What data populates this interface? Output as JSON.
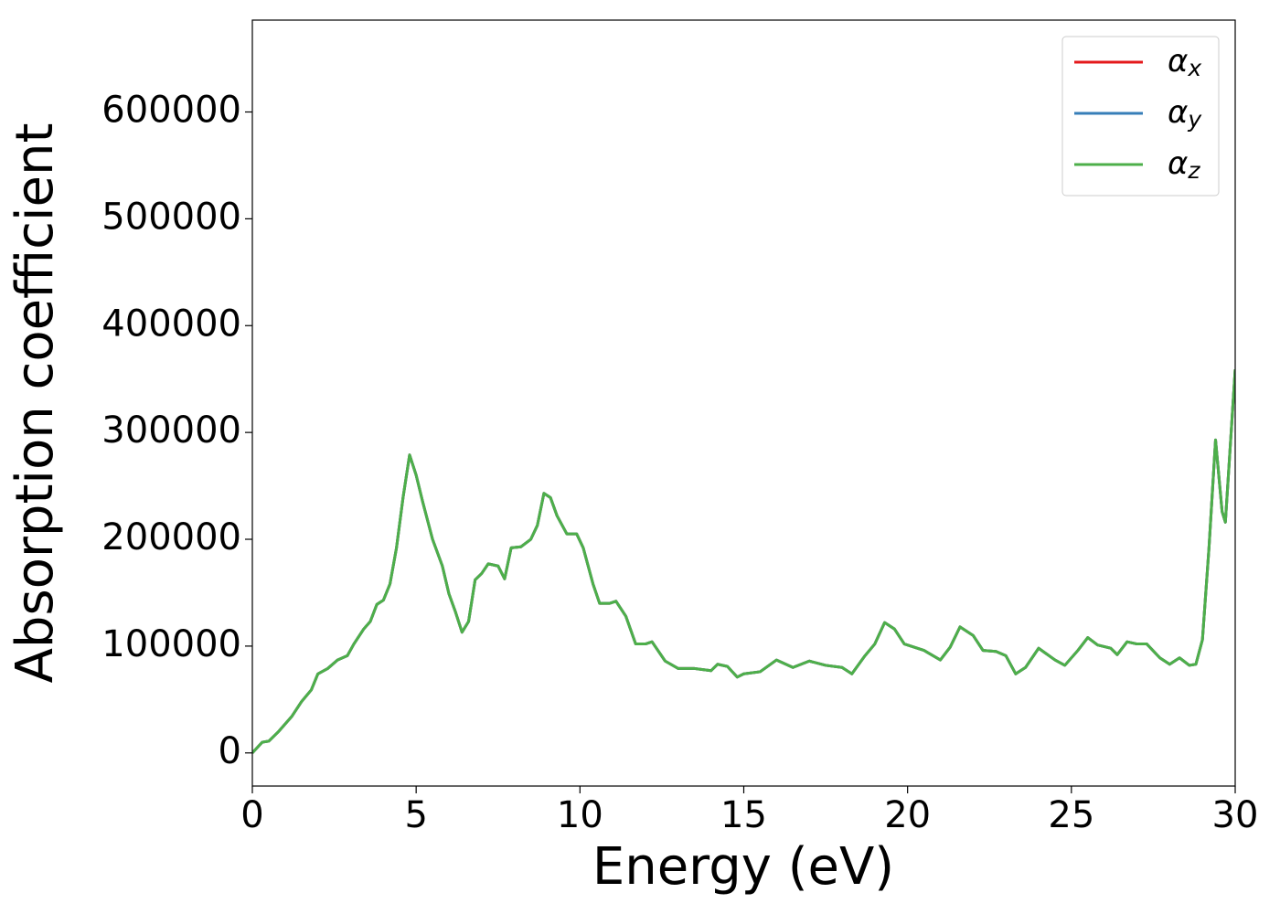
{
  "chart_data": {
    "type": "line",
    "xlabel": "Energy (eV)",
    "ylabel": "Absorption coefficient",
    "xlim": [
      0,
      30
    ],
    "xticks": [
      0,
      5,
      10,
      15,
      20,
      25,
      30
    ],
    "ylim": [
      -31000,
      686000
    ],
    "yticks": [
      0,
      100000,
      200000,
      300000,
      400000,
      500000,
      600000
    ],
    "grid": false,
    "legend": "upper right",
    "x": [
      0,
      0.3,
      0.5,
      0.8,
      1.2,
      1.5,
      1.8,
      2.0,
      2.3,
      2.6,
      2.9,
      3.1,
      3.4,
      3.6,
      3.8,
      4.0,
      4.2,
      4.4,
      4.6,
      4.8,
      5.0,
      5.2,
      5.5,
      5.8,
      6.0,
      6.2,
      6.4,
      6.6,
      6.8,
      7.0,
      7.2,
      7.5,
      7.7,
      7.9,
      8.2,
      8.5,
      8.7,
      8.9,
      9.1,
      9.3,
      9.6,
      9.9,
      10.1,
      10.4,
      10.6,
      10.9,
      11.1,
      11.4,
      11.7,
      12.0,
      12.2,
      12.6,
      13.0,
      13.5,
      14.0,
      14.2,
      14.5,
      14.8,
      15.0,
      15.5,
      16.0,
      16.5,
      17.0,
      17.5,
      18.0,
      18.3,
      18.7,
      19.0,
      19.3,
      19.6,
      19.9,
      20.5,
      21.0,
      21.3,
      21.6,
      22.0,
      22.3,
      22.7,
      23.0,
      23.3,
      23.6,
      24.0,
      24.5,
      24.8,
      25.2,
      25.5,
      25.8,
      26.2,
      26.4,
      26.7,
      27.0,
      27.3,
      27.7,
      28.0,
      28.3,
      28.6,
      28.8,
      29.0,
      29.2,
      29.4,
      29.6,
      29.7,
      30.0
    ],
    "series": [
      {
        "name": "αx",
        "color": "#e41a1c",
        "values": [
          0,
          10000,
          11000,
          20000,
          34000,
          48000,
          59000,
          74000,
          79000,
          87000,
          91000,
          102000,
          116000,
          123000,
          139000,
          143000,
          158000,
          192000,
          239000,
          279000,
          260000,
          235000,
          200000,
          175000,
          149000,
          132000,
          113000,
          123000,
          162000,
          168000,
          177000,
          175000,
          163000,
          192000,
          193000,
          200000,
          213000,
          243000,
          239000,
          222000,
          205000,
          205000,
          192000,
          158000,
          140000,
          140000,
          142000,
          128000,
          102000,
          102000,
          104000,
          86000,
          79000,
          79000,
          77000,
          83000,
          81000,
          71000,
          74000,
          76000,
          87000,
          80000,
          86000,
          82000,
          80000,
          74000,
          91000,
          102000,
          122000,
          116000,
          102000,
          96000,
          87000,
          99000,
          118000,
          110000,
          96000,
          95000,
          91000,
          74000,
          80000,
          98000,
          87000,
          82000,
          96000,
          108000,
          101000,
          98000,
          92000,
          104000,
          102000,
          102000,
          89000,
          83000,
          89000,
          82000,
          83000,
          106000,
          192000,
          293000,
          226000,
          216000,
          359000
        ]
      },
      {
        "name": "αy",
        "color": "#377eb8",
        "values": [
          0,
          10000,
          11000,
          20000,
          34000,
          48000,
          59000,
          74000,
          79000,
          87000,
          91000,
          102000,
          116000,
          123000,
          139000,
          143000,
          158000,
          192000,
          239000,
          279000,
          260000,
          235000,
          200000,
          175000,
          149000,
          132000,
          113000,
          123000,
          162000,
          168000,
          177000,
          175000,
          163000,
          192000,
          193000,
          200000,
          213000,
          243000,
          239000,
          222000,
          205000,
          205000,
          192000,
          158000,
          140000,
          140000,
          142000,
          128000,
          102000,
          102000,
          104000,
          86000,
          79000,
          79000,
          77000,
          83000,
          81000,
          71000,
          74000,
          76000,
          87000,
          80000,
          86000,
          82000,
          80000,
          74000,
          91000,
          102000,
          122000,
          116000,
          102000,
          96000,
          87000,
          99000,
          118000,
          110000,
          96000,
          95000,
          91000,
          74000,
          80000,
          98000,
          87000,
          82000,
          96000,
          108000,
          101000,
          98000,
          92000,
          104000,
          102000,
          102000,
          89000,
          83000,
          89000,
          82000,
          83000,
          106000,
          192000,
          293000,
          226000,
          216000,
          359000
        ]
      },
      {
        "name": "αz",
        "color": "#4daf4a",
        "values": [
          0,
          10000,
          11000,
          20000,
          34000,
          48000,
          59000,
          74000,
          79000,
          87000,
          91000,
          102000,
          116000,
          123000,
          139000,
          143000,
          158000,
          192000,
          239000,
          279000,
          260000,
          235000,
          200000,
          175000,
          149000,
          132000,
          113000,
          123000,
          162000,
          168000,
          177000,
          175000,
          163000,
          192000,
          193000,
          200000,
          213000,
          243000,
          239000,
          222000,
          205000,
          205000,
          192000,
          158000,
          140000,
          140000,
          142000,
          128000,
          102000,
          102000,
          104000,
          86000,
          79000,
          79000,
          77000,
          83000,
          81000,
          71000,
          74000,
          76000,
          87000,
          80000,
          86000,
          82000,
          80000,
          74000,
          91000,
          102000,
          122000,
          116000,
          102000,
          96000,
          87000,
          99000,
          118000,
          110000,
          96000,
          95000,
          91000,
          74000,
          80000,
          98000,
          87000,
          82000,
          96000,
          108000,
          101000,
          98000,
          92000,
          104000,
          102000,
          102000,
          89000,
          83000,
          89000,
          82000,
          83000,
          106000,
          192000,
          293000,
          226000,
          216000,
          359000
        ]
      }
    ]
  }
}
